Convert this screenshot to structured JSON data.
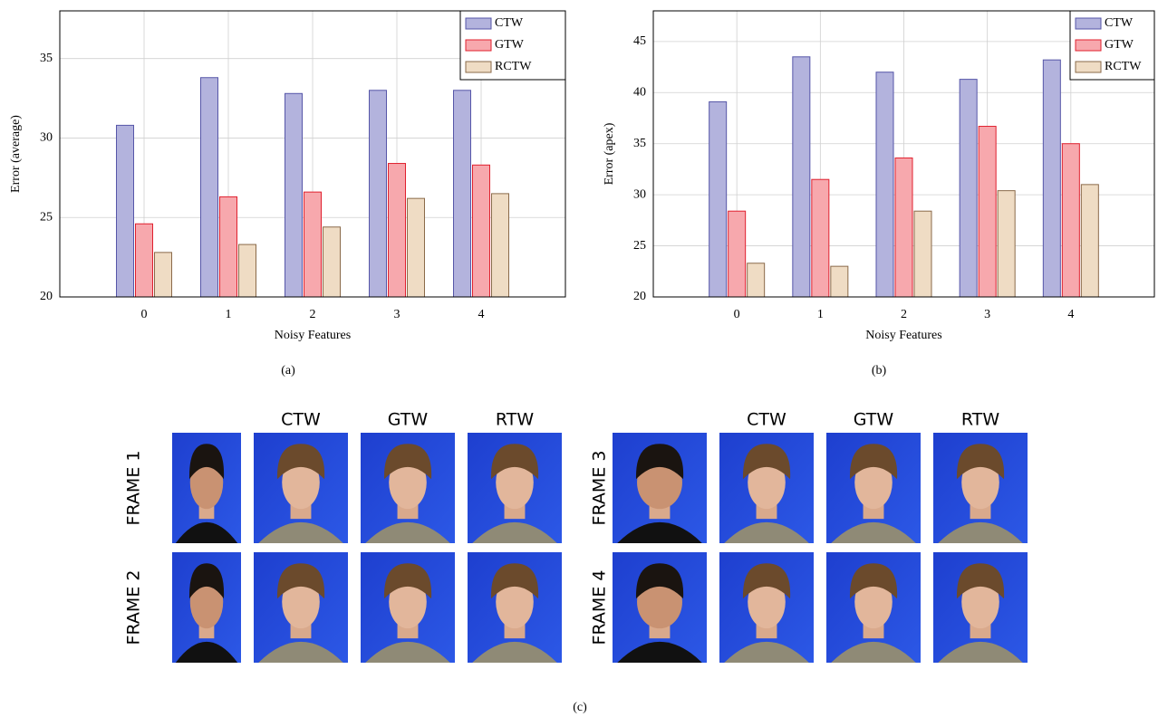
{
  "chart_data": [
    {
      "type": "bar",
      "xlabel": "Noisy Features",
      "ylabel": "Error (average)",
      "x": [
        0,
        1,
        2,
        3,
        4
      ],
      "xlim": [
        -1,
        5
      ],
      "xticks": [
        0,
        1,
        2,
        3,
        4
      ],
      "ylim": [
        20,
        38
      ],
      "yticks": [
        20,
        25,
        30,
        35
      ],
      "grid": true,
      "legend": "upper right",
      "series": [
        {
          "name": "CTW",
          "color": "#b3b3dd",
          "values": [
            30.8,
            33.8,
            32.8,
            33.0,
            33.0
          ]
        },
        {
          "name": "GTW",
          "color": "#f7a8ad",
          "values": [
            24.6,
            26.3,
            26.6,
            28.4,
            28.3
          ]
        },
        {
          "name": "RCTW",
          "color": "#efdcc4",
          "values": [
            22.8,
            23.3,
            24.4,
            26.2,
            26.5
          ]
        }
      ]
    },
    {
      "type": "bar",
      "xlabel": "Noisy Features",
      "ylabel": "Error (apex)",
      "x": [
        0,
        1,
        2,
        3,
        4
      ],
      "xlim": [
        -1,
        5
      ],
      "xticks": [
        0,
        1,
        2,
        3,
        4
      ],
      "ylim": [
        20,
        48
      ],
      "yticks": [
        20,
        25,
        30,
        35,
        40,
        45
      ],
      "grid": true,
      "legend": "upper right",
      "series": [
        {
          "name": "CTW",
          "color": "#b3b3dd",
          "values": [
            39.1,
            43.5,
            42.0,
            41.3,
            43.2
          ]
        },
        {
          "name": "GTW",
          "color": "#f7a8ad",
          "values": [
            28.4,
            31.5,
            33.6,
            36.7,
            35.0
          ]
        },
        {
          "name": "RCTW",
          "color": "#efdcc4",
          "values": [
            23.3,
            23.0,
            28.4,
            30.4,
            31.0
          ]
        }
      ]
    }
  ],
  "captions": [
    "(a)",
    "(b)",
    "(c)"
  ],
  "photo_panel": {
    "groups": [
      {
        "column_headers": [
          "CTW",
          "GTW",
          "RTW"
        ],
        "row_labels": [
          "FRAME 1",
          "FRAME 2"
        ]
      },
      {
        "column_headers": [
          "CTW",
          "GTW",
          "RTW"
        ],
        "row_labels": [
          "FRAME 3",
          "FRAME 4"
        ]
      }
    ]
  }
}
